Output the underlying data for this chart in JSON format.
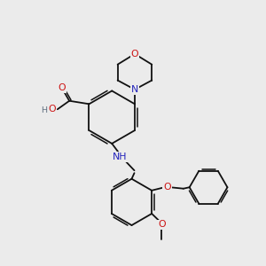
{
  "background_color": "#ebebeb",
  "bond_color": "#111111",
  "N_color": "#2222bb",
  "O_color": "#cc1111",
  "H_color": "#607080",
  "font_size": 6.8,
  "bond_width": 1.3,
  "figsize": [
    3.0,
    3.0
  ],
  "dpi": 100,
  "xlim": [
    0,
    10
  ],
  "ylim": [
    0,
    10
  ]
}
